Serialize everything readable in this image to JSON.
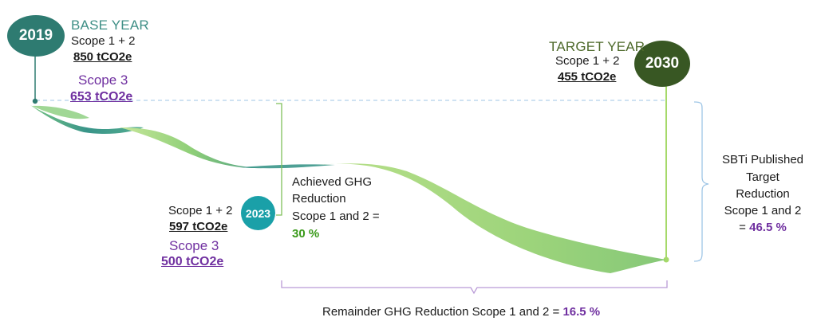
{
  "milestones": {
    "base": {
      "year": "2019",
      "heading": "BASE YEAR",
      "scope12_label": "Scope 1 + 2",
      "scope12_value": "850 tCO2e",
      "scope3_label": "Scope 3",
      "scope3_value": "653 tCO2e"
    },
    "current": {
      "year": "2023",
      "scope12_label": "Scope 1 + 2",
      "scope12_value": "597 tCO2e",
      "scope3_label": "Scope 3",
      "scope3_value": "500 tCO2e"
    },
    "target": {
      "year": "2030",
      "heading": "TARGET YEAR",
      "scope12_label": "Scope 1 + 2",
      "scope12_value": "455 tCO2e"
    }
  },
  "achieved": {
    "line1": "Achieved GHG",
    "line2": "Reduction",
    "line3": "Scope 1 and 2 =",
    "percent": "30 %"
  },
  "sbti": {
    "line1": "SBTi Published",
    "line2": "Target",
    "line3": "Reduction",
    "line4": "Scope 1 and 2",
    "eq": "=",
    "percent": "46.5 %"
  },
  "remainder": {
    "text": "Remainder GHG Reduction Scope 1 and 2 =",
    "percent": "16.5 %"
  },
  "colors": {
    "base_circle": "#2e7b71",
    "current_circle": "#1aa0a8",
    "target_circle": "#385723",
    "ribbon_teal": "#2f8f83",
    "ribbon_green": "#a6d96a",
    "scope3": "#7030a0",
    "achieved_pct": "#3a9a1a"
  }
}
